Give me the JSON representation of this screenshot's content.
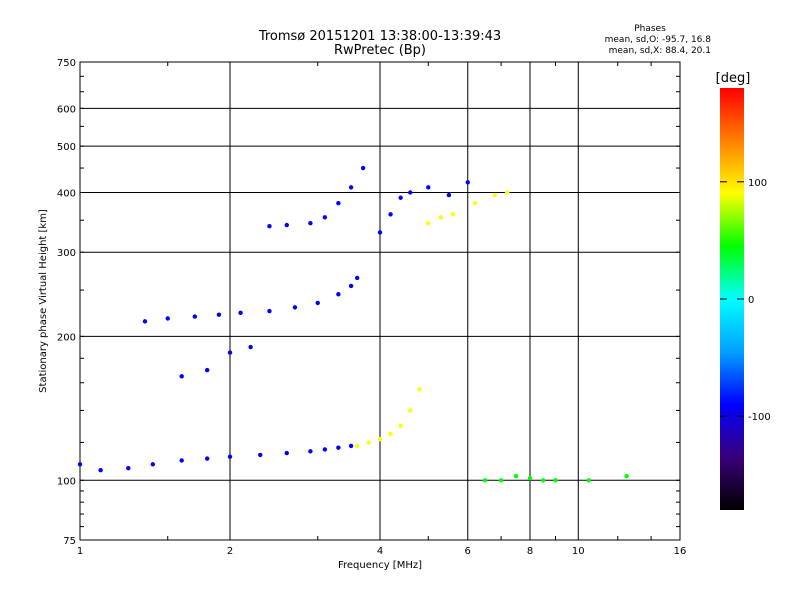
{
  "chart_data": {
    "type": "scatter",
    "title": "Tromsø 20151201 13:38:00-13:39:43",
    "subtitle": "RwPretec (Bp)",
    "xlabel": "Frequency [MHz]",
    "ylabel": "Stationary phase Virtual Height [km]",
    "x_scale": "log",
    "y_scale": "log",
    "xlim": [
      1,
      16
    ],
    "ylim": [
      75,
      750
    ],
    "x_ticks": [
      1,
      2,
      4,
      6,
      8,
      10,
      16
    ],
    "y_ticks": [
      75,
      100,
      200,
      300,
      400,
      500,
      600,
      750
    ],
    "grid": true,
    "stats": {
      "heading": "Phases",
      "line_o": "mean, sd,O: -95.7, 16.8",
      "line_x": "mean, sd,X:  88.4, 20.1"
    },
    "colorbar": {
      "label": "[deg]",
      "range": [
        -180,
        180
      ],
      "ticks": [
        100,
        0,
        -100
      ],
      "colors": [
        "#000000",
        "#3a007a",
        "#0000ff",
        "#00a0ff",
        "#00ffff",
        "#00ff00",
        "#ffff00",
        "#ff8000",
        "#ff0000"
      ]
    },
    "series": [
      {
        "x": [
          1.0,
          1.1,
          1.25,
          1.4,
          1.6,
          1.8,
          2.0,
          2.3,
          2.6,
          2.9,
          3.1,
          3.3,
          3.5
        ],
        "y": [
          108,
          105,
          106,
          108,
          110,
          111,
          112,
          113,
          114,
          115,
          116,
          117,
          118
        ],
        "phase": -100
      },
      {
        "x": [
          1.35,
          1.5,
          1.7,
          1.9,
          2.1,
          2.4,
          2.7,
          3.0,
          3.3,
          3.5,
          3.6
        ],
        "y": [
          215,
          218,
          220,
          222,
          224,
          226,
          230,
          235,
          245,
          255,
          265
        ],
        "phase": -100
      },
      {
        "x": [
          2.4,
          2.6,
          2.9,
          3.1,
          3.3,
          3.5,
          3.7
        ],
        "y": [
          340,
          342,
          345,
          355,
          380,
          410,
          450
        ],
        "phase": -100
      },
      {
        "x": [
          4.0,
          4.2,
          4.4,
          4.6,
          5.0,
          5.5,
          6.0
        ],
        "y": [
          330,
          360,
          390,
          400,
          410,
          395,
          420
        ],
        "phase": -100
      },
      {
        "x": [
          3.6,
          3.8,
          4.0,
          4.2,
          4.4,
          4.6,
          4.8,
          5.0,
          5.3,
          5.6,
          6.2,
          6.8,
          7.2
        ],
        "y": [
          118,
          120,
          122,
          125,
          130,
          140,
          155,
          345,
          355,
          360,
          380,
          395,
          400
        ],
        "phase": 90
      },
      {
        "x": [
          1.6,
          1.8,
          2.0,
          2.2
        ],
        "y": [
          165,
          170,
          185,
          190
        ],
        "phase": -100
      },
      {
        "x": [
          6.5,
          7.0,
          7.5,
          8.0,
          8.5,
          9.0,
          10.5,
          12.5
        ],
        "y": [
          100,
          100,
          102,
          101,
          100,
          100,
          100,
          102
        ],
        "phase": 60
      }
    ]
  }
}
